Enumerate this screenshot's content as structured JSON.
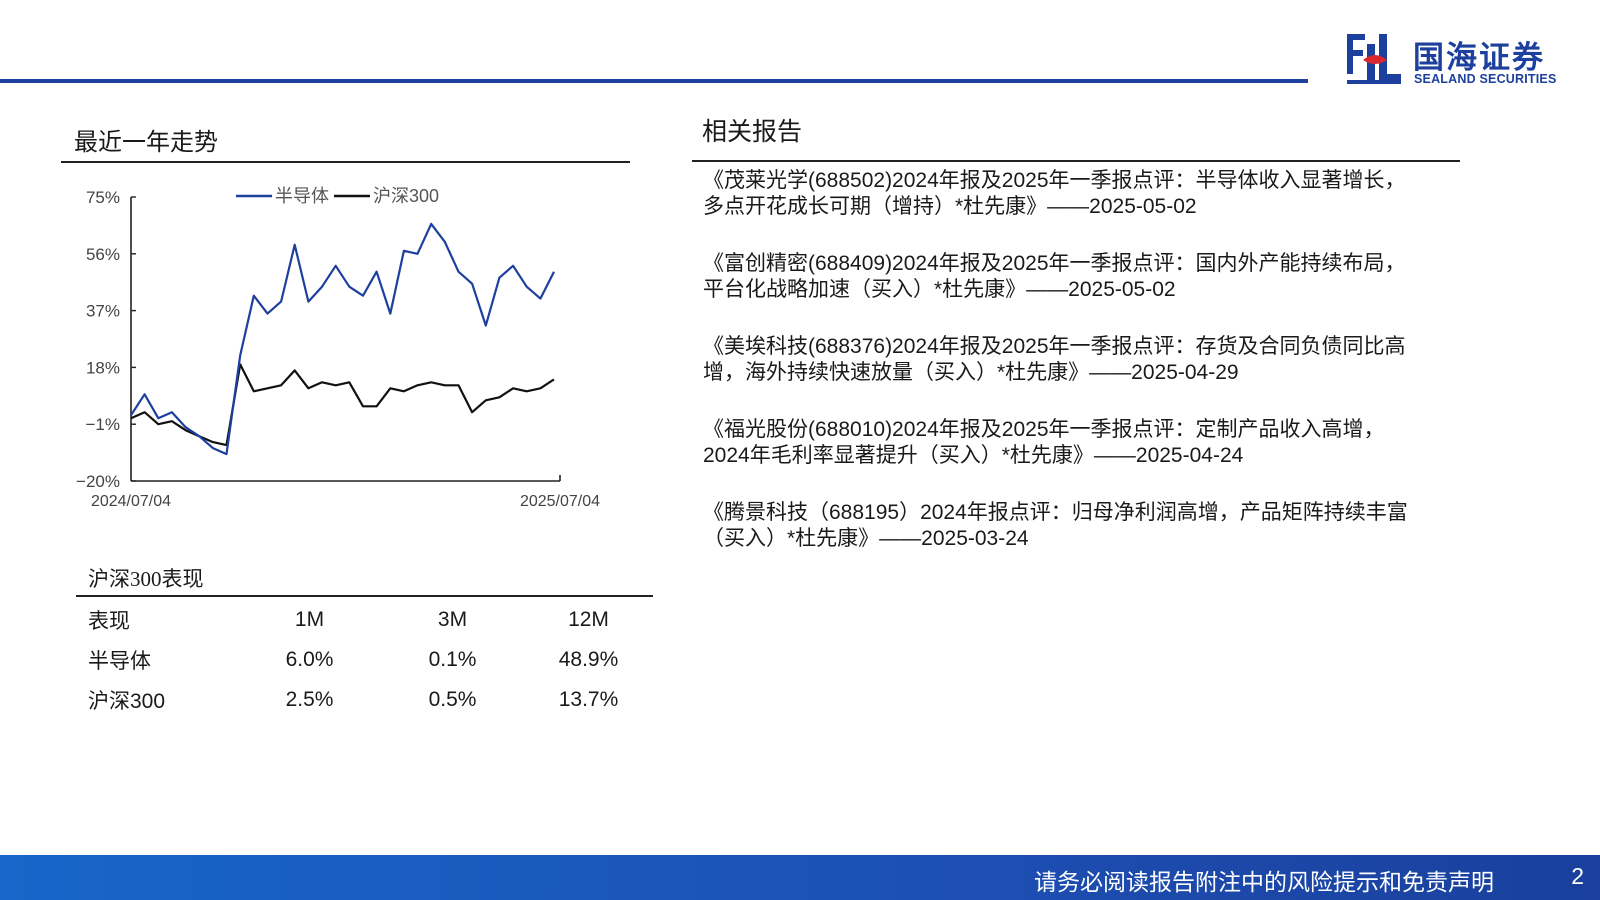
{
  "brand": {
    "name_cn": "国海证券",
    "name_en": "SEALAND SECURITIES",
    "primary_color": "#1d3f9e"
  },
  "trend_section": {
    "title": "最近一年走势"
  },
  "chart_data": {
    "type": "line",
    "title": "",
    "legend_position": "top-center",
    "y_ticks": [
      "75%",
      "56%",
      "37%",
      "18%",
      "−1%",
      "−20%"
    ],
    "ylim": [
      -20,
      75
    ],
    "x_start_label": "2024/07/04",
    "x_end_label": "2025/07/04",
    "x": [
      "2024-07-04",
      "2024-07-16",
      "2024-07-26",
      "2024-08-07",
      "2024-08-19",
      "2024-08-29",
      "2024-09-10",
      "2024-09-20",
      "2024-10-08",
      "2024-10-18",
      "2024-10-30",
      "2024-11-11",
      "2024-11-21",
      "2024-12-03",
      "2024-12-13",
      "2024-12-25",
      "2025-01-07",
      "2025-01-17",
      "2025-02-05",
      "2025-02-17",
      "2025-02-27",
      "2025-03-11",
      "2025-03-21",
      "2025-04-02",
      "2025-04-14",
      "2025-04-24",
      "2025-05-09",
      "2025-05-21",
      "2025-06-03",
      "2025-06-13",
      "2025-06-25",
      "2025-07-04"
    ],
    "series": [
      {
        "name": "半导体",
        "color": "#1d3f9e",
        "values": [
          2,
          9,
          1,
          3,
          -2,
          -5,
          -9,
          -11,
          22,
          42,
          36,
          40,
          59,
          40,
          45,
          52,
          45,
          42,
          50,
          36,
          57,
          56,
          66,
          60,
          50,
          46,
          32,
          48,
          52,
          45,
          41,
          50
        ]
      },
      {
        "name": "沪深300",
        "color": "#111111",
        "values": [
          1,
          3,
          -1,
          0,
          -3,
          -5,
          -7,
          -8,
          19,
          10,
          11,
          12,
          17,
          11,
          13,
          12,
          13,
          5,
          5,
          11,
          10,
          12,
          13,
          12,
          12,
          3,
          7,
          8,
          11,
          10,
          11,
          14
        ]
      }
    ]
  },
  "performance": {
    "title": "沪深300表现",
    "headers": [
      "表现",
      "1M",
      "3M",
      "12M"
    ],
    "rows": [
      [
        "半导体",
        "6.0%",
        "0.1%",
        "48.9%"
      ],
      [
        "沪深300",
        "2.5%",
        "0.5%",
        "13.7%"
      ]
    ]
  },
  "related_reports": {
    "title": "相关报告",
    "items": [
      {
        "line1": "《茂莱光学(688502)2024年报及2025年一季报点评：半导体收入显著增长，",
        "line2": "多点开花成长可期（增持）*杜先康》——2025-05-02"
      },
      {
        "line1": "《富创精密(688409)2024年报及2025年一季报点评：国内外产能持续布局，",
        "line2": "平台化战略加速（买入）*杜先康》——2025-05-02"
      },
      {
        "line1": "《美埃科技(688376)2024年报及2025年一季报点评：存货及合同负债同比高",
        "line2": "增，海外持续快速放量（买入）*杜先康》——2025-04-29"
      },
      {
        "line1": "《福光股份(688010)2024年报及2025年一季报点评：定制产品收入高增，",
        "line2": "2024年毛利率显著提升（买入）*杜先康》——2025-04-24"
      },
      {
        "line1": "《腾景科技（688195）2024年报点评：归母净利润高增，产品矩阵持续丰富",
        "line2": "（买入）*杜先康》——2025-03-24"
      }
    ]
  },
  "footer": {
    "disclaimer": "请务必阅读报告附注中的风险提示和免责声明",
    "page_number": "2"
  }
}
